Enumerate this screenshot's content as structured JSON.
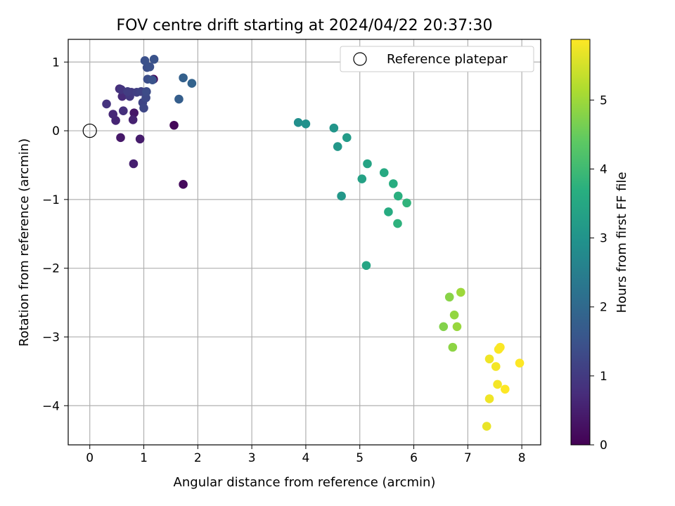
{
  "chart_data": {
    "type": "scatter",
    "title": "FOV centre drift starting at 2024/04/22 20:37:30",
    "xlabel": "Angular distance from reference (arcmin)",
    "ylabel": "Rotation from reference (arcmin)",
    "xlim": [
      -0.4,
      8.35
    ],
    "ylim": [
      -4.57,
      1.33
    ],
    "xticks": [
      0,
      1,
      2,
      3,
      4,
      5,
      6,
      7,
      8
    ],
    "yticks": [
      -4,
      -3,
      -2,
      -1,
      0,
      1
    ],
    "grid": true,
    "legend": {
      "placement": "top-right",
      "entries": [
        "Reference platepar"
      ]
    },
    "reference_point": {
      "x": 0,
      "y": 0
    },
    "colorbar": {
      "label": "Hours from first FF file",
      "range": [
        0,
        5.88
      ],
      "ticks": [
        0,
        1,
        2,
        3,
        4,
        5
      ],
      "colormap": "viridis"
    },
    "points": [
      {
        "x": 1.18,
        "y": 0.75,
        "c": 0.05
      },
      {
        "x": 1.56,
        "y": 0.08,
        "c": 0.1
      },
      {
        "x": 1.73,
        "y": -0.78,
        "c": 0.15
      },
      {
        "x": 0.82,
        "y": 0.26,
        "c": 0.35
      },
      {
        "x": 0.57,
        "y": -0.1,
        "c": 0.4
      },
      {
        "x": 0.93,
        "y": -0.12,
        "c": 0.45
      },
      {
        "x": 0.81,
        "y": -0.48,
        "c": 0.5
      },
      {
        "x": 0.8,
        "y": 0.16,
        "c": 0.55
      },
      {
        "x": 0.48,
        "y": 0.15,
        "c": 0.6
      },
      {
        "x": 0.43,
        "y": 0.24,
        "c": 0.65
      },
      {
        "x": 0.6,
        "y": 0.5,
        "c": 0.7
      },
      {
        "x": 0.55,
        "y": 0.61,
        "c": 0.75
      },
      {
        "x": 0.62,
        "y": 0.29,
        "c": 0.8
      },
      {
        "x": 0.31,
        "y": 0.39,
        "c": 0.85
      },
      {
        "x": 0.58,
        "y": 0.6,
        "c": 0.9
      },
      {
        "x": 0.74,
        "y": 0.5,
        "c": 0.95
      },
      {
        "x": 0.77,
        "y": 0.56,
        "c": 1.0
      },
      {
        "x": 0.7,
        "y": 0.57,
        "c": 1.05
      },
      {
        "x": 0.87,
        "y": 0.56,
        "c": 1.1
      },
      {
        "x": 0.95,
        "y": 0.57,
        "c": 1.15
      },
      {
        "x": 0.98,
        "y": 0.41,
        "c": 1.2
      },
      {
        "x": 1.0,
        "y": 0.33,
        "c": 1.25
      },
      {
        "x": 1.04,
        "y": 0.48,
        "c": 1.3
      },
      {
        "x": 1.05,
        "y": 0.57,
        "c": 1.35
      },
      {
        "x": 1.07,
        "y": 0.75,
        "c": 1.4
      },
      {
        "x": 1.06,
        "y": 0.92,
        "c": 1.4
      },
      {
        "x": 1.11,
        "y": 0.93,
        "c": 1.45
      },
      {
        "x": 1.02,
        "y": 1.02,
        "c": 1.45
      },
      {
        "x": 1.19,
        "y": 1.04,
        "c": 1.5
      },
      {
        "x": 1.16,
        "y": 0.74,
        "c": 1.5
      },
      {
        "x": 1.65,
        "y": 0.46,
        "c": 1.75
      },
      {
        "x": 1.73,
        "y": 0.77,
        "c": 1.8
      },
      {
        "x": 1.89,
        "y": 0.69,
        "c": 1.85
      },
      {
        "x": 3.86,
        "y": 0.12,
        "c": 2.9
      },
      {
        "x": 4.0,
        "y": 0.1,
        "c": 2.95
      },
      {
        "x": 4.52,
        "y": 0.04,
        "c": 3.05
      },
      {
        "x": 4.59,
        "y": -0.23,
        "c": 3.1
      },
      {
        "x": 4.66,
        "y": -0.95,
        "c": 3.1
      },
      {
        "x": 4.76,
        "y": -0.1,
        "c": 3.2
      },
      {
        "x": 5.04,
        "y": -0.7,
        "c": 3.35
      },
      {
        "x": 5.14,
        "y": -0.48,
        "c": 3.4
      },
      {
        "x": 5.12,
        "y": -1.96,
        "c": 3.45
      },
      {
        "x": 5.45,
        "y": -0.61,
        "c": 3.55
      },
      {
        "x": 5.53,
        "y": -1.18,
        "c": 3.6
      },
      {
        "x": 5.62,
        "y": -0.77,
        "c": 3.65
      },
      {
        "x": 5.71,
        "y": -0.95,
        "c": 3.7
      },
      {
        "x": 5.7,
        "y": -1.35,
        "c": 3.75
      },
      {
        "x": 5.87,
        "y": -1.05,
        "c": 3.8
      },
      {
        "x": 6.55,
        "y": -2.85,
        "c": 4.75
      },
      {
        "x": 6.66,
        "y": -2.42,
        "c": 4.8
      },
      {
        "x": 6.72,
        "y": -3.15,
        "c": 4.85
      },
      {
        "x": 6.75,
        "y": -2.68,
        "c": 4.9
      },
      {
        "x": 6.8,
        "y": -2.85,
        "c": 4.95
      },
      {
        "x": 6.87,
        "y": -2.35,
        "c": 5.0
      },
      {
        "x": 7.35,
        "y": -4.3,
        "c": 5.7
      },
      {
        "x": 7.4,
        "y": -3.32,
        "c": 5.75
      },
      {
        "x": 7.4,
        "y": -3.9,
        "c": 5.75
      },
      {
        "x": 7.52,
        "y": -3.43,
        "c": 5.8
      },
      {
        "x": 7.55,
        "y": -3.69,
        "c": 5.8
      },
      {
        "x": 7.57,
        "y": -3.18,
        "c": 5.85
      },
      {
        "x": 7.6,
        "y": -3.15,
        "c": 5.85
      },
      {
        "x": 7.69,
        "y": -3.76,
        "c": 5.88
      },
      {
        "x": 7.96,
        "y": -3.38,
        "c": 5.88
      }
    ]
  }
}
